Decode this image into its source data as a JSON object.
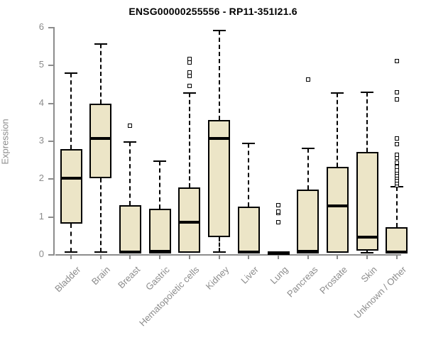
{
  "title": "ENSG00000255556 - RP11-351I21.6",
  "chart_data": {
    "type": "boxplot",
    "title": "ENSG00000255556 - RP11-351I21.6",
    "xlabel": "",
    "ylabel": "Expression",
    "ylim": [
      0,
      6
    ],
    "yticks": [
      0,
      1,
      2,
      3,
      4,
      5,
      6
    ],
    "grid": false,
    "categories": [
      "Bladder",
      "Brain",
      "Breast",
      "Gastric",
      "Hematopoietic cells",
      "Kidney",
      "Liver",
      "Lung",
      "Pancreas",
      "Prostate",
      "Skin",
      "Unknown / Other"
    ],
    "boxes": [
      {
        "category": "Bladder",
        "min": 0.05,
        "q1": 0.8,
        "median": 2.0,
        "q3": 2.77,
        "max": 4.78,
        "outliers": []
      },
      {
        "category": "Brain",
        "min": 0.05,
        "q1": 2.0,
        "median": 3.05,
        "q3": 3.97,
        "max": 5.55,
        "outliers": []
      },
      {
        "category": "Breast",
        "min": 0.0,
        "q1": 0.02,
        "median": 0.06,
        "q3": 1.3,
        "max": 2.97,
        "outliers": [
          3.4
        ]
      },
      {
        "category": "Gastric",
        "min": 0.0,
        "q1": 0.02,
        "median": 0.07,
        "q3": 1.2,
        "max": 2.45,
        "outliers": []
      },
      {
        "category": "Hematopoietic cells",
        "min": 0.0,
        "q1": 0.03,
        "median": 0.85,
        "q3": 1.77,
        "max": 4.25,
        "outliers": [
          4.45,
          4.7,
          4.8,
          5.07,
          5.15
        ]
      },
      {
        "category": "Kidney",
        "min": 0.05,
        "q1": 0.45,
        "median": 3.05,
        "q3": 3.55,
        "max": 5.9,
        "outliers": []
      },
      {
        "category": "Liver",
        "min": 0.0,
        "q1": 0.02,
        "median": 0.06,
        "q3": 1.25,
        "max": 2.92,
        "outliers": []
      },
      {
        "category": "Lung",
        "min": 0.0,
        "q1": 0.01,
        "median": 0.03,
        "q3": 0.05,
        "max": 0.07,
        "outliers": [
          0.85,
          1.08,
          1.12,
          1.3
        ]
      },
      {
        "category": "Pancreas",
        "min": 0.0,
        "q1": 0.02,
        "median": 0.07,
        "q3": 1.7,
        "max": 2.8,
        "outliers": [
          4.62
        ]
      },
      {
        "category": "Prostate",
        "min": 0.0,
        "q1": 0.03,
        "median": 1.28,
        "q3": 2.3,
        "max": 4.25,
        "outliers": []
      },
      {
        "category": "Skin",
        "min": 0.03,
        "q1": 0.1,
        "median": 0.45,
        "q3": 2.7,
        "max": 4.28,
        "outliers": []
      },
      {
        "category": "Unknown / Other",
        "min": 0.0,
        "q1": 0.02,
        "median": 0.05,
        "q3": 0.72,
        "max": 1.78,
        "outliers": [
          1.82,
          1.88,
          1.95,
          2.02,
          2.08,
          2.15,
          2.22,
          2.3,
          2.42,
          2.55,
          2.62,
          2.9,
          3.05,
          4.08,
          4.28,
          5.1
        ]
      }
    ],
    "colors": {
      "box_fill": "#ece5c7",
      "box_border": "#000000",
      "median": "#000000",
      "axis": "#8c8c8c",
      "tick_labels": "#8c8c8c",
      "title": "#000000",
      "background": "#ffffff"
    },
    "legend": null
  }
}
